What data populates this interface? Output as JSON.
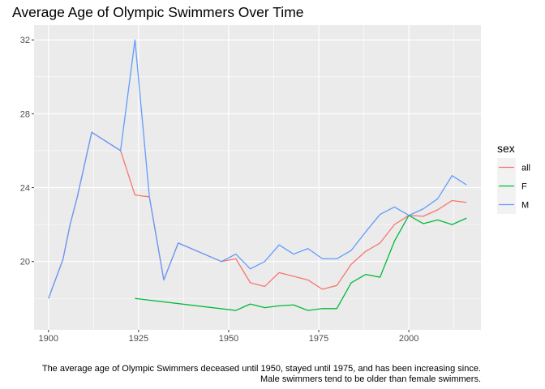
{
  "chart_data": {
    "type": "line",
    "title": "Average Age of Olympic Swimmers Over Time",
    "caption_lines": [
      "The average age of Olympic Swimmers deceased until 1950, stayed until 1975, and has been increasing since.",
      "Male swimmers tend to be older than female swimmers."
    ],
    "xlim": [
      1896,
      2020
    ],
    "ylim": [
      16.3,
      32.8
    ],
    "x_ticks": [
      1900,
      1925,
      1950,
      1975,
      2000
    ],
    "x_minor_ticks": [
      1912.5,
      1937.5,
      1962.5,
      1987.5,
      2012.5
    ],
    "y_ticks": [
      20,
      24,
      28,
      32
    ],
    "y_minor_ticks": [
      18,
      22,
      26,
      30
    ],
    "grid": true,
    "legend": {
      "title": "sex",
      "position": "right"
    },
    "series": [
      {
        "name": "all",
        "color": "#F8766D",
        "points": [
          [
            1900,
            18.0
          ],
          [
            1904,
            20.1
          ],
          [
            1906,
            22.0
          ],
          [
            1908,
            23.5
          ],
          [
            1912,
            27.0
          ],
          [
            1920,
            26.0
          ],
          [
            1924,
            23.6
          ],
          [
            1928,
            23.5
          ],
          [
            1932,
            19.0
          ],
          [
            1936,
            21.0
          ],
          [
            1948,
            20.0
          ],
          [
            1952,
            20.15
          ],
          [
            1956,
            18.85
          ],
          [
            1960,
            18.65
          ],
          [
            1964,
            19.4
          ],
          [
            1968,
            19.2
          ],
          [
            1972,
            19.0
          ],
          [
            1976,
            18.5
          ],
          [
            1980,
            18.7
          ],
          [
            1984,
            19.85
          ],
          [
            1988,
            20.55
          ],
          [
            1992,
            21.0
          ],
          [
            1996,
            22.0
          ],
          [
            2000,
            22.5
          ],
          [
            2004,
            22.45
          ],
          [
            2008,
            22.8
          ],
          [
            2012,
            23.3
          ],
          [
            2016,
            23.2
          ]
        ]
      },
      {
        "name": "F",
        "color": "#00BA38",
        "points": [
          [
            1924,
            18.0
          ],
          [
            1952,
            17.35
          ],
          [
            1956,
            17.7
          ],
          [
            1960,
            17.5
          ],
          [
            1964,
            17.6
          ],
          [
            1968,
            17.65
          ],
          [
            1972,
            17.35
          ],
          [
            1976,
            17.45
          ],
          [
            1980,
            17.45
          ],
          [
            1984,
            18.85
          ],
          [
            1988,
            19.3
          ],
          [
            1992,
            19.15
          ],
          [
            1996,
            21.1
          ],
          [
            2000,
            22.5
          ],
          [
            2004,
            22.05
          ],
          [
            2008,
            22.25
          ],
          [
            2012,
            22.0
          ],
          [
            2016,
            22.35
          ]
        ]
      },
      {
        "name": "M",
        "color": "#619CFF",
        "points": [
          [
            1900,
            18.0
          ],
          [
            1904,
            20.1
          ],
          [
            1906,
            22.0
          ],
          [
            1908,
            23.5
          ],
          [
            1912,
            27.0
          ],
          [
            1920,
            26.0
          ],
          [
            1924,
            32.0
          ],
          [
            1928,
            23.5
          ],
          [
            1932,
            19.0
          ],
          [
            1936,
            21.0
          ],
          [
            1948,
            20.0
          ],
          [
            1952,
            20.4
          ],
          [
            1956,
            19.6
          ],
          [
            1960,
            20.0
          ],
          [
            1964,
            20.9
          ],
          [
            1968,
            20.4
          ],
          [
            1972,
            20.7
          ],
          [
            1976,
            20.15
          ],
          [
            1980,
            20.15
          ],
          [
            1984,
            20.6
          ],
          [
            1988,
            21.6
          ],
          [
            1992,
            22.55
          ],
          [
            1996,
            22.95
          ],
          [
            2000,
            22.5
          ],
          [
            2004,
            22.85
          ],
          [
            2008,
            23.4
          ],
          [
            2012,
            24.65
          ],
          [
            2016,
            24.15
          ]
        ]
      }
    ]
  }
}
